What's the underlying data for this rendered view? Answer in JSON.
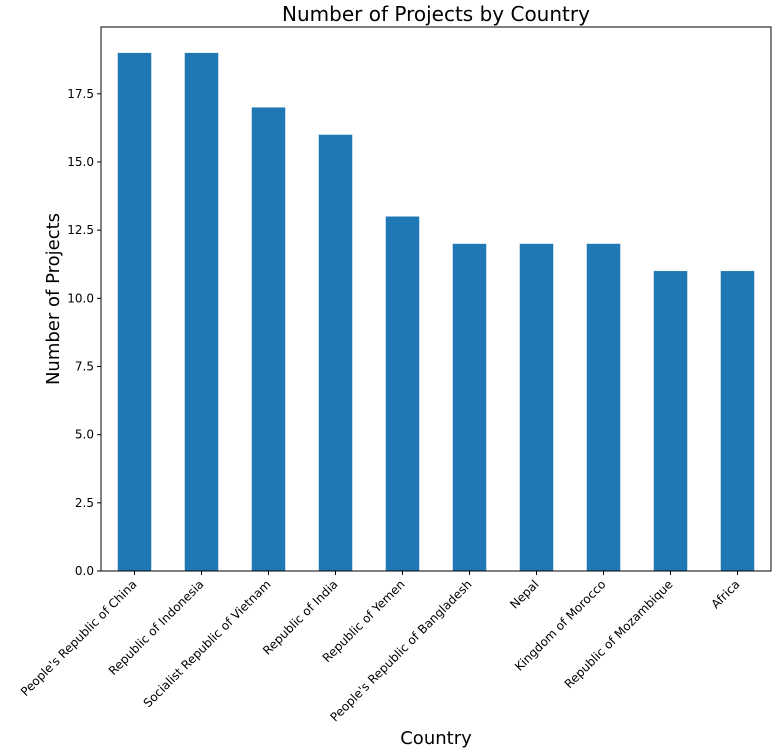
{
  "chart_data": {
    "type": "bar",
    "title": "Number of Projects by Country",
    "xlabel": "Country",
    "ylabel": "Number of Projects",
    "categories": [
      "People's Republic of China",
      "Republic of Indonesia",
      "Socialist Republic of Vietnam",
      "Republic of India",
      "Republic of Yemen",
      "People's Republic of Bangladesh",
      "Nepal",
      "Kingdom of Morocco",
      "Republic of Mozambique",
      "Africa"
    ],
    "values": [
      19,
      19,
      17,
      16,
      13,
      12,
      12,
      12,
      11,
      11
    ],
    "ylim": [
      0,
      19.95
    ],
    "yticks": [
      0.0,
      2.5,
      5.0,
      7.5,
      10.0,
      12.5,
      15.0,
      17.5
    ],
    "ytick_labels": [
      "0.0",
      "2.5",
      "5.0",
      "7.5",
      "10.0",
      "12.5",
      "15.0",
      "17.5"
    ],
    "bar_color": "#1f77b4",
    "grid": false,
    "legend": "none"
  }
}
